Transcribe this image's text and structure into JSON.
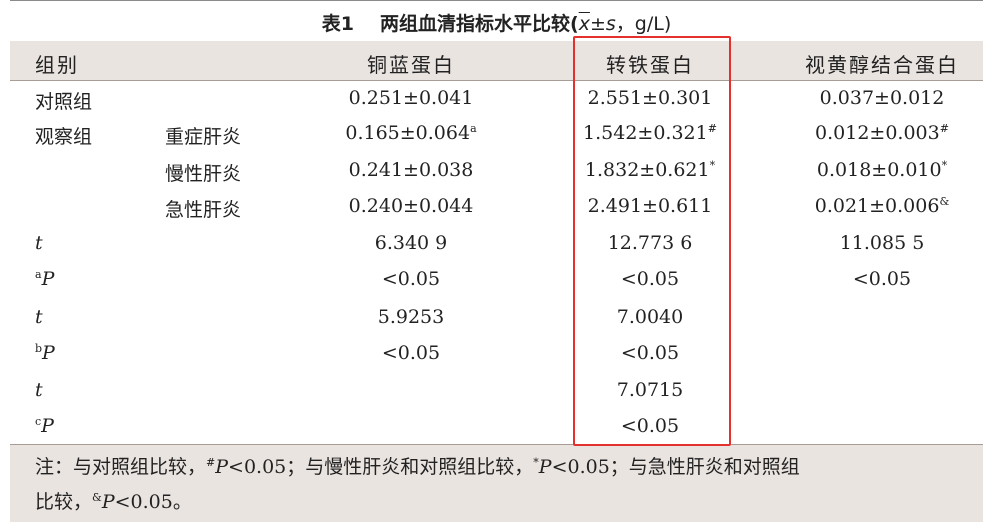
{
  "table": {
    "title_number": "表1",
    "title_text": "两组血清指标水平比较(",
    "title_xbar": "x",
    "title_pm": "±",
    "title_s": "s",
    "title_unit": "，g/L)",
    "headers": {
      "group": "组别",
      "col1": "铜蓝蛋白",
      "col2": "转铁蛋白",
      "col3": "视黄醇结合蛋白"
    },
    "rows": [
      {
        "group": "对照组",
        "sub": "",
        "c1": "0.251±0.041",
        "c1_sup": "",
        "c2": "2.551±0.301",
        "c2_sup": "",
        "c3": "0.037±0.012",
        "c3_sup": ""
      },
      {
        "group": "观察组",
        "sub": "重症肝炎",
        "c1": "0.165±0.064",
        "c1_sup": "a",
        "c2": "1.542±0.321",
        "c2_sup": "#",
        "c3": "0.012±0.003",
        "c3_sup": "#"
      },
      {
        "group": "",
        "sub": "慢性肝炎",
        "c1": "0.241±0.038",
        "c1_sup": "",
        "c2": "1.832±0.621",
        "c2_sup": "*",
        "c3": "0.018±0.010",
        "c3_sup": "*"
      },
      {
        "group": "",
        "sub": "急性肝炎",
        "c1": "0.240±0.044",
        "c1_sup": "",
        "c2": "2.491±0.611",
        "c2_sup": "",
        "c3": "0.021±0.006",
        "c3_sup": "&"
      }
    ],
    "stats": [
      {
        "sup": "",
        "label": "t",
        "c1": "6.340 9",
        "c2": "12.773 6",
        "c3": "11.085 5"
      },
      {
        "sup": "a",
        "label": "P",
        "c1": "<0.05",
        "c2": "<0.05",
        "c3": "<0.05"
      },
      {
        "sup": "",
        "label": "t",
        "c1": "5.9253",
        "c2": "7.0040",
        "c3": ""
      },
      {
        "sup": "b",
        "label": "P",
        "c1": "<0.05",
        "c2": "<0.05",
        "c3": ""
      },
      {
        "sup": "",
        "label": "t",
        "c1": "",
        "c2": "7.0715",
        "c3": ""
      },
      {
        "sup": "c",
        "label": "P",
        "c1": "",
        "c2": "<0.05",
        "c3": ""
      }
    ],
    "note": {
      "prefix": "注：与对照组比较，",
      "sup1": "#",
      "p1": "P",
      "v1": "<0.05；与慢性肝炎和对照组比较，",
      "sup2": "*",
      "p2": "P",
      "v2": "<0.05；与急性肝炎和对照组",
      "line2_prefix": "比较，",
      "sup3": "&",
      "p3": "P",
      "v3": "<0.05。"
    },
    "highlight_color": "#e5312d"
  }
}
